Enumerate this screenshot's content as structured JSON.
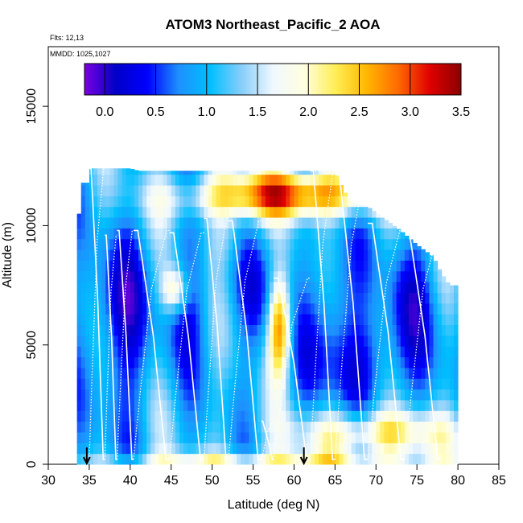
{
  "chart_data": {
    "type": "heatmap",
    "title": "ATOM3 Northeast_Pacific_2 AOA",
    "flights": "Flts: 12,13",
    "dates": "MMDD: 1025,1027",
    "xlabel": "Latitude (deg N)",
    "ylabel": "Altitude (m)",
    "xlim": [
      30,
      85
    ],
    "ylim": [
      0,
      17500
    ],
    "x_ticks": [
      "30",
      "35",
      "40",
      "45",
      "50",
      "55",
      "60",
      "65",
      "70",
      "75",
      "80",
      "85"
    ],
    "y_ticks": [
      "0",
      "5000",
      "10000",
      "15000"
    ],
    "colorbar": {
      "range": [
        -0.2,
        3.5
      ],
      "ticks": [
        "0.0",
        "0.5",
        "1.0",
        "1.5",
        "2.0",
        "2.5",
        "3.0",
        "3.5"
      ],
      "stops": [
        "#7b00e0",
        "#0000c8",
        "#0000ff",
        "#1e90ff",
        "#00bfff",
        "#87cefa",
        "#f0f8ff",
        "#ffffe0",
        "#ffee55",
        "#ffb700",
        "#ff6a00",
        "#e00000",
        "#8b0000"
      ]
    },
    "markers_lat": [
      34.7,
      61.2
    ],
    "profiles": [
      {
        "lat0": 35.0,
        "lat1": 36.9,
        "top": 12400
      },
      {
        "lat0": 36.9,
        "lat1": 38.4,
        "top": 9600
      },
      {
        "lat0": 38.4,
        "lat1": 40.4,
        "top": 9800
      },
      {
        "lat0": 40.4,
        "lat1": 44.8,
        "top": 9800
      },
      {
        "lat0": 44.8,
        "lat1": 49.0,
        "top": 9700
      },
      {
        "lat0": 49.0,
        "lat1": 52.0,
        "top": 10300
      },
      {
        "lat0": 52.0,
        "lat1": 56.0,
        "top": 10200
      },
      {
        "lat0": 56.0,
        "lat1": 57.5,
        "top": 1800
      },
      {
        "lat0": 57.5,
        "lat1": 62.0,
        "top": 7800
      },
      {
        "lat0": 62.0,
        "lat1": 65.0,
        "top": 12300
      },
      {
        "lat0": 65.0,
        "lat1": 69.0,
        "top": 12300
      },
      {
        "lat0": 69.0,
        "lat1": 73.5,
        "top": 10100
      },
      {
        "lat0": 73.5,
        "lat1": 78.0,
        "top": 9800
      }
    ]
  }
}
